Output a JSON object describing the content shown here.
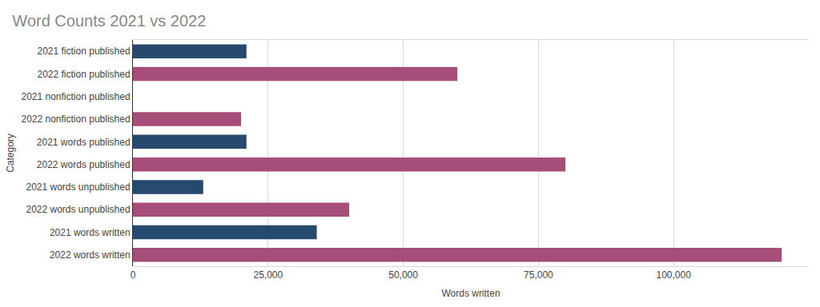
{
  "chart_data": {
    "type": "bar",
    "title": "Word Counts 2021 vs 2022",
    "x_label": "Words written",
    "y_label": "Category",
    "orientation": "horizontal",
    "categories": [
      "2021 fiction published",
      "2022 fiction published",
      "2021 nonfiction published",
      "2022 nonfiction published",
      "2021 words published",
      "2022 words published",
      "2021 words unpublished",
      "2022 words unpublished",
      "2021 words written",
      "2022 words written"
    ],
    "values": [
      21000,
      60000,
      0,
      20000,
      21000,
      80000,
      13000,
      40000,
      34000,
      120000
    ],
    "colors": [
      "#264a6e",
      "#a64d79",
      "#264a6e",
      "#a64d79",
      "#264a6e",
      "#a64d79",
      "#264a6e",
      "#a64d79",
      "#264a6e",
      "#a64d79"
    ],
    "xlim": [
      0,
      125000
    ],
    "xticks": [
      0,
      {
        "value": 25000,
        "label": "25,000"
      },
      {
        "value": 50000,
        "label": "50,000"
      },
      {
        "value": 75000,
        "label": "75,000"
      },
      {
        "value": 100000,
        "label": "100,000"
      }
    ],
    "grid": true
  }
}
